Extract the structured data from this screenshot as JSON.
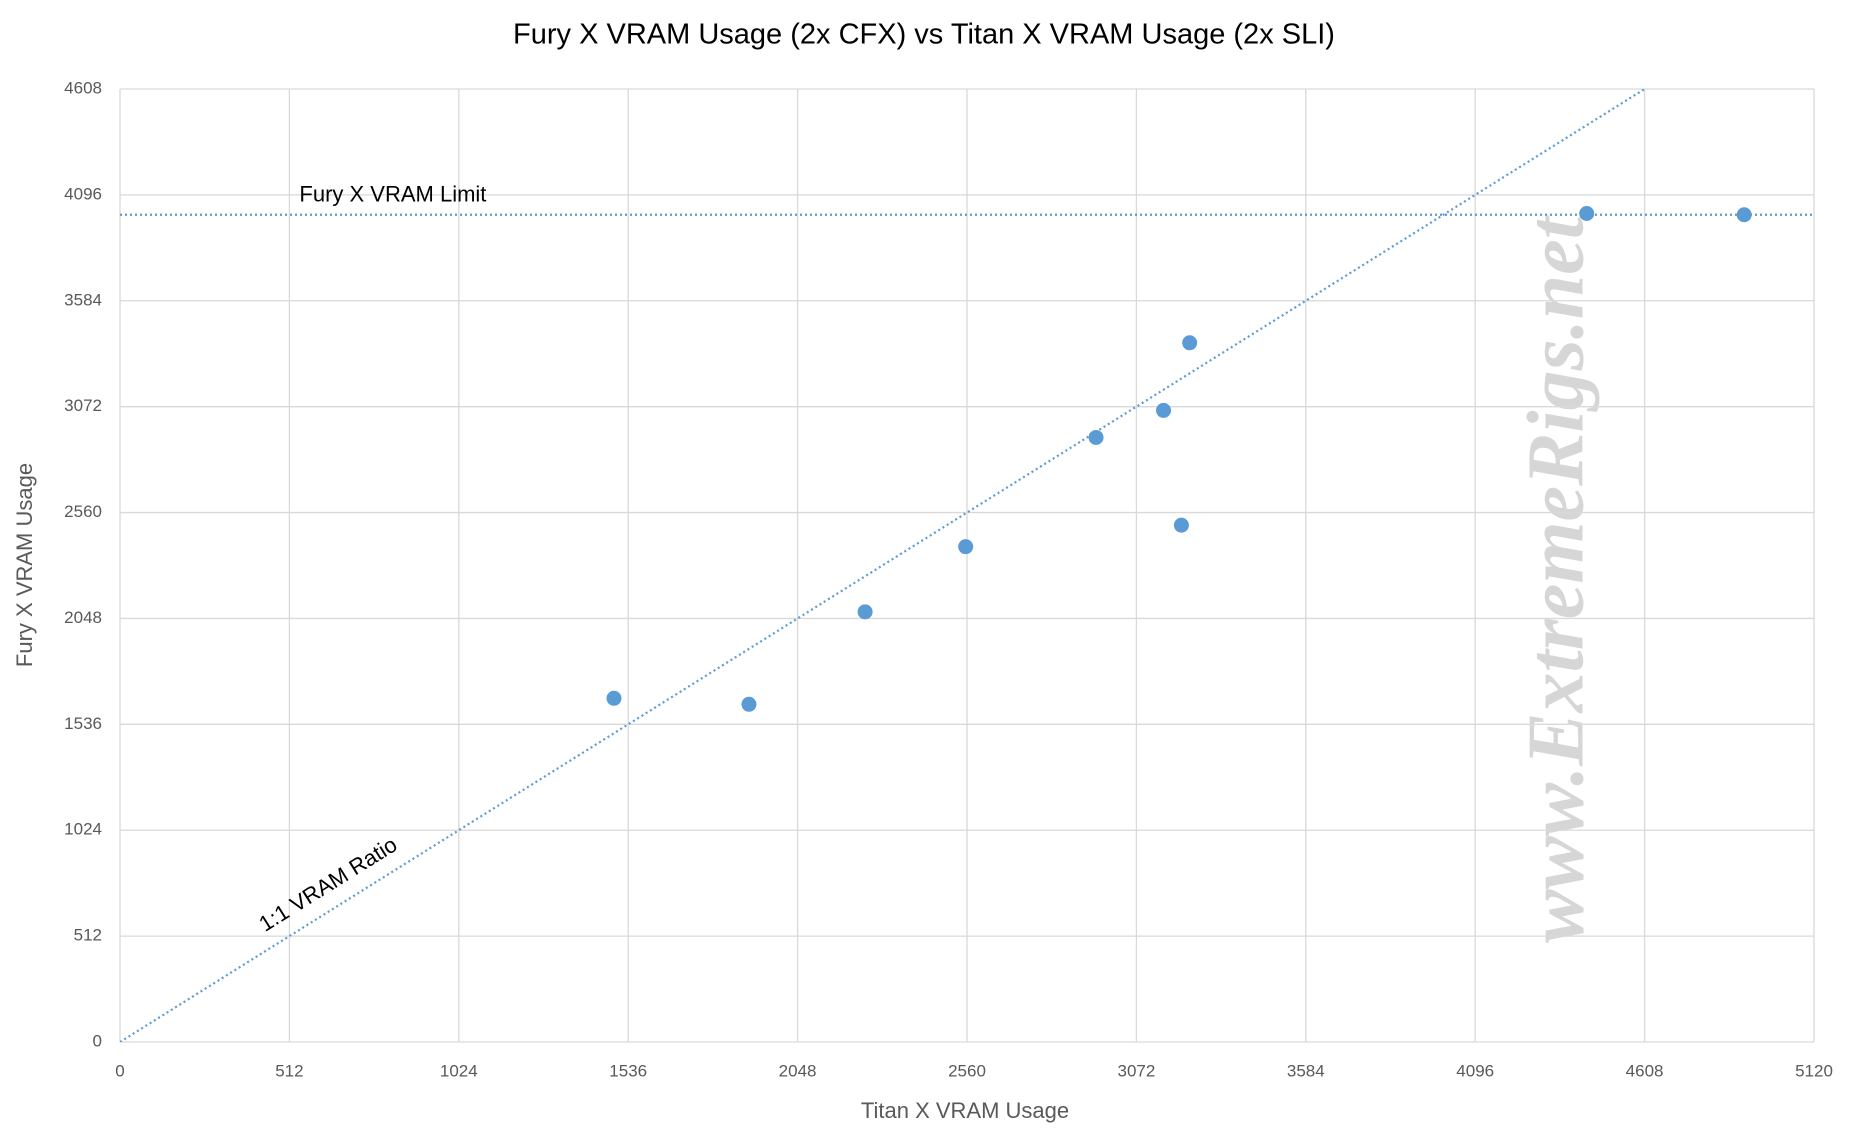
{
  "chart_data": {
    "type": "scatter",
    "title": "Fury X VRAM Usage (2x CFX) vs Titan X VRAM Usage (2x SLI)",
    "xlabel": "Titan X VRAM Usage",
    "ylabel": "Fury X VRAM Usage",
    "watermark": "www.ExtremeRigs.net",
    "xlim": [
      0,
      5120
    ],
    "ylim": [
      0,
      4608
    ],
    "xticks": [
      0,
      512,
      1024,
      1536,
      2048,
      2560,
      3072,
      3584,
      4096,
      4608,
      5120
    ],
    "yticks": [
      0,
      512,
      1024,
      1536,
      2048,
      2560,
      3072,
      3584,
      4096,
      4608
    ],
    "grid": true,
    "color": "#5b9bd5",
    "x": [
      1493,
      1901,
      2252,
      2556,
      2950,
      3154,
      3208,
      3233,
      4433,
      4909
    ],
    "values": [
      1662,
      1633,
      2080,
      2395,
      2923,
      3054,
      2499,
      3381,
      4006,
      4000
    ],
    "reference_lines": [
      {
        "label": "Fury X VRAM Limit",
        "y": 4000
      },
      {
        "label": "1:1 VRAM Ratio",
        "slope": 1
      }
    ]
  }
}
